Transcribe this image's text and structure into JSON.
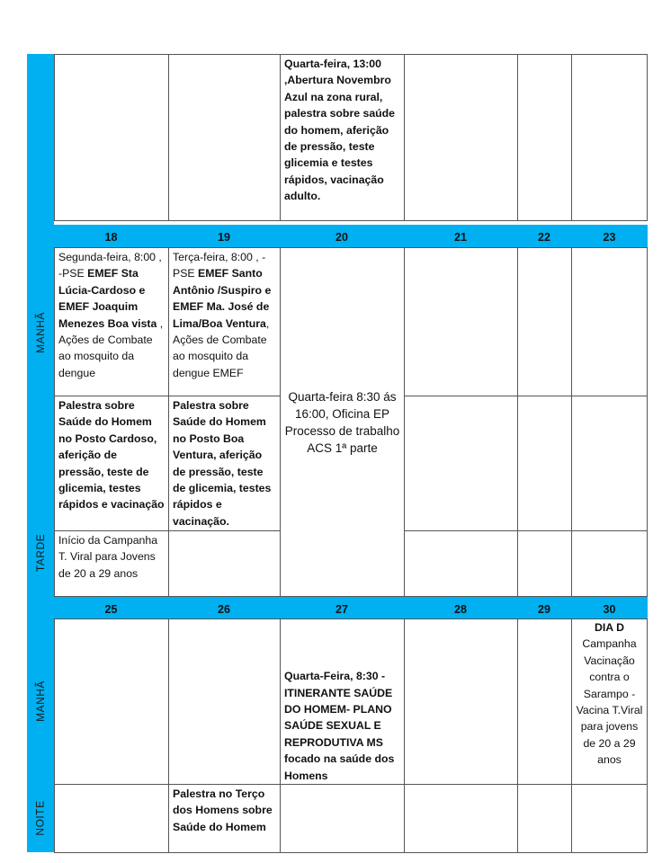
{
  "colors": {
    "accent": "#00b0f0"
  },
  "labels": {
    "manha": "MANHÃ",
    "tarde": "TARDE",
    "manha2": "MANHÃ",
    "noite": "NOITE"
  },
  "week1": {
    "wed_top": "Quarta-feira, 13:00 ,Abertura Novembro Azul na zona rural, palestra sobre saúde do homem, aferição de pressão, teste glicemia e  testes rápidos, vacinação adulto."
  },
  "week2": {
    "days": [
      "18",
      "19",
      "20",
      "21",
      "22",
      "23"
    ],
    "d18_morning": {
      "a": "Segunda-feira, 8:00 ,  -PSE ",
      "b": "EMEF Sta Lúcia-Cardoso e EMEF Joaquim Menezes  Boa vista",
      "c": "  , Ações de Combate ao mosquito da dengue"
    },
    "d19_morning": {
      "a": "Terça-feira, 8:00 , -PSE ",
      "b": "EMEF  Santo Antônio /Suspiro e EMEF Ma. José de Lima/Boa Ventura",
      "c": ", Ações de Combate ao mosquito da dengue EMEF"
    },
    "d18_mid": "Palestra sobre Saúde do Homem no Posto Cardoso, aferição de pressão, teste de glicemia, testes rápidos e vacinação",
    "d19_mid": "Palestra sobre Saúde do Homem no Posto Boa Ventura, aferição de pressão, teste de glicemia, testes rápidos e vacinação.",
    "d18_afternoon": "Início da Campanha T. Viral para Jovens de 20 a 29 anos",
    "d20": "Quarta-feira 8:30 ás 16:00, Oficina EP Processo de trabalho ACS 1ª parte"
  },
  "week3": {
    "days": [
      "25",
      "26",
      "27",
      "28",
      "29",
      "30"
    ],
    "d27_morning": "Quarta-Feira, 8:30 - ITINERANTE SAÚDE DO HOMEM- PLANO SAÚDE SEXUAL E REPRODUTIVA MS focado na saúde dos Homens",
    "d30_title": "DIA D",
    "d30_text": "Campanha Vacinação contra o Sarampo - Vacina T.Viral para jovens de 20 a 29 anos",
    "d26_night": "Palestra no Terço dos Homens sobre Saúde do Homem"
  }
}
